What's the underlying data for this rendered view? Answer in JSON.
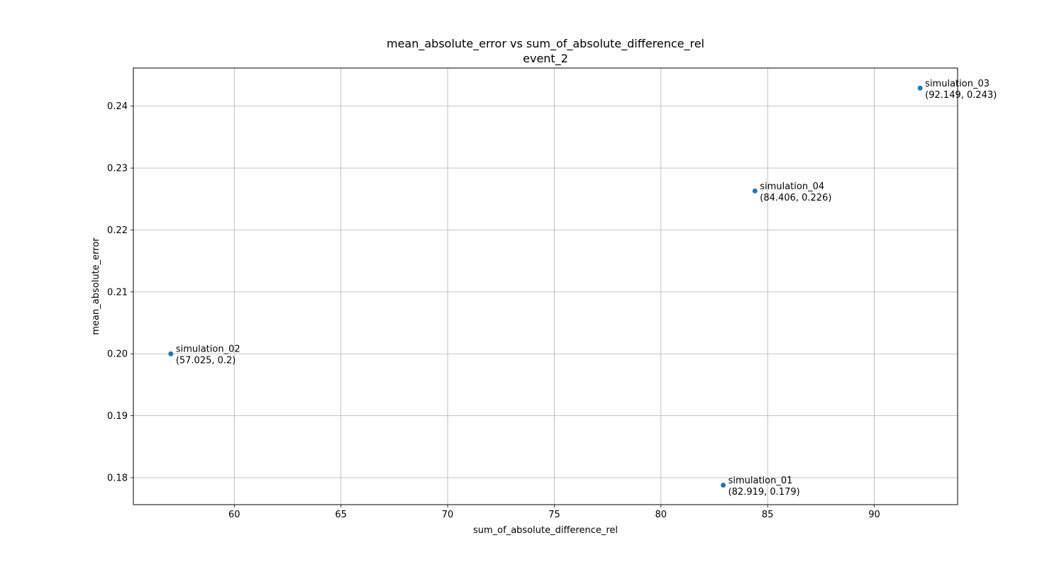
{
  "chart_data": {
    "type": "scatter",
    "title": "mean_absolute_error vs sum_of_absolute_difference_rel",
    "subtitle": "event_2",
    "xlabel": "sum_of_absolute_difference_rel",
    "ylabel": "mean_absolute_error",
    "xlim": [
      55.269,
      93.905
    ],
    "ylim": [
      0.17565,
      0.24615
    ],
    "xticks": [
      60,
      65,
      70,
      75,
      80,
      85,
      90
    ],
    "yticks": [
      0.18,
      0.19,
      0.2,
      0.21,
      0.22,
      0.23,
      0.24
    ],
    "xtick_labels": [
      "60",
      "65",
      "70",
      "75",
      "80",
      "85",
      "90"
    ],
    "ytick_labels": [
      "0.18",
      "0.19",
      "0.20",
      "0.21",
      "0.22",
      "0.23",
      "0.24"
    ],
    "grid": true,
    "marker_color": "#1f77b4",
    "points": [
      {
        "name": "simulation_01",
        "x": 82.919,
        "y": 0.1788,
        "coords": "(82.919, 0.179)"
      },
      {
        "name": "simulation_02",
        "x": 57.025,
        "y": 0.2,
        "coords": "(57.025, 0.2)"
      },
      {
        "name": "simulation_03",
        "x": 92.149,
        "y": 0.2429,
        "coords": "(92.149, 0.243)"
      },
      {
        "name": "simulation_04",
        "x": 84.406,
        "y": 0.2263,
        "coords": "(84.406, 0.226)"
      }
    ]
  }
}
